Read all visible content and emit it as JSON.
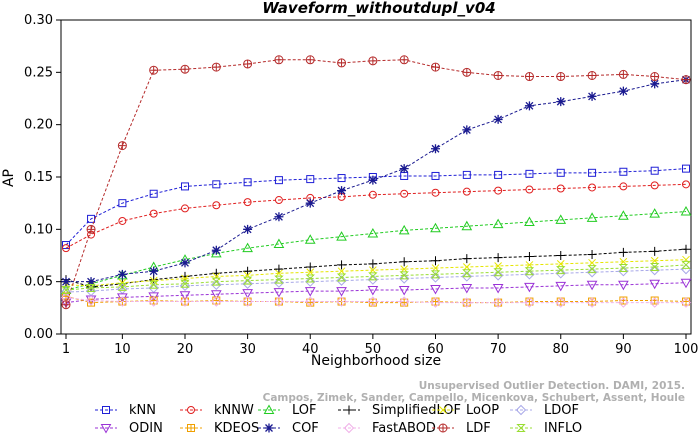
{
  "chart_data": {
    "type": "line",
    "title": "Waveform_withoutdupl_v04",
    "xlabel": "Neighborhood size",
    "ylabel": "AP",
    "xlim": [
      1,
      100
    ],
    "ylim": [
      0,
      0.3
    ],
    "x_ticks": [
      1,
      10,
      20,
      30,
      40,
      50,
      60,
      70,
      80,
      90,
      100
    ],
    "y_ticks": [
      "0.00",
      "0.05",
      "0.10",
      "0.15",
      "0.20",
      "0.25",
      "0.30"
    ],
    "grid": false,
    "legend_position": "bottom",
    "x_points": [
      1,
      5,
      10,
      15,
      20,
      25,
      30,
      35,
      40,
      45,
      50,
      55,
      60,
      65,
      70,
      75,
      80,
      85,
      90,
      95,
      100
    ],
    "watermark": [
      "Campos, Zimek, Sander, Campello, Micenkova, Schubert, Assent, Houle",
      "Unsupervised Outlier Detection. DAMI, 2015."
    ],
    "series": [
      {
        "name": "kNN",
        "color": "#1f1fd6",
        "marker": "square",
        "values": [
          0.085,
          0.11,
          0.125,
          0.134,
          0.141,
          0.143,
          0.145,
          0.147,
          0.148,
          0.149,
          0.15,
          0.151,
          0.151,
          0.152,
          0.152,
          0.153,
          0.154,
          0.154,
          0.155,
          0.156,
          0.158
        ]
      },
      {
        "name": "kNNW",
        "color": "#e01f1f",
        "marker": "circle",
        "values": [
          0.082,
          0.095,
          0.108,
          0.115,
          0.12,
          0.123,
          0.126,
          0.128,
          0.13,
          0.131,
          0.133,
          0.134,
          0.135,
          0.136,
          0.137,
          0.138,
          0.139,
          0.14,
          0.141,
          0.142,
          0.143
        ]
      },
      {
        "name": "LOF",
        "color": "#22cc22",
        "marker": "triangle",
        "values": [
          0.042,
          0.048,
          0.056,
          0.064,
          0.071,
          0.077,
          0.082,
          0.086,
          0.09,
          0.093,
          0.096,
          0.099,
          0.101,
          0.103,
          0.105,
          0.107,
          0.109,
          0.111,
          0.113,
          0.115,
          0.117
        ]
      },
      {
        "name": "SimplifiedLOF",
        "color": "#000000",
        "marker": "plus",
        "values": [
          0.052,
          0.045,
          0.048,
          0.052,
          0.055,
          0.058,
          0.06,
          0.062,
          0.064,
          0.066,
          0.067,
          0.069,
          0.07,
          0.072,
          0.073,
          0.074,
          0.075,
          0.076,
          0.078,
          0.079,
          0.081
        ]
      },
      {
        "name": "LoOP",
        "color": "#e6e600",
        "marker": "x",
        "values": [
          0.047,
          0.046,
          0.049,
          0.051,
          0.053,
          0.055,
          0.056,
          0.058,
          0.059,
          0.06,
          0.061,
          0.062,
          0.063,
          0.064,
          0.065,
          0.066,
          0.067,
          0.068,
          0.069,
          0.07,
          0.071
        ]
      },
      {
        "name": "LDOF",
        "color": "#a8a8e8",
        "marker": "diamond",
        "values": [
          0.04,
          0.041,
          0.043,
          0.044,
          0.046,
          0.047,
          0.048,
          0.049,
          0.05,
          0.051,
          0.052,
          0.053,
          0.054,
          0.055,
          0.056,
          0.057,
          0.058,
          0.059,
          0.06,
          0.061,
          0.062
        ]
      },
      {
        "name": "ODIN",
        "color": "#9a32d6",
        "marker": "triangle-down",
        "values": [
          0.03,
          0.033,
          0.035,
          0.036,
          0.037,
          0.038,
          0.039,
          0.04,
          0.041,
          0.041,
          0.042,
          0.042,
          0.043,
          0.044,
          0.044,
          0.045,
          0.046,
          0.047,
          0.047,
          0.048,
          0.049
        ]
      },
      {
        "name": "KDEOS",
        "color": "#f0a000",
        "marker": "boxplus",
        "values": [
          0.036,
          0.03,
          0.031,
          0.032,
          0.031,
          0.032,
          0.031,
          0.031,
          0.03,
          0.031,
          0.03,
          0.03,
          0.031,
          0.03,
          0.03,
          0.031,
          0.031,
          0.031,
          0.032,
          0.032,
          0.031
        ]
      },
      {
        "name": "COF",
        "color": "#1a1a90",
        "marker": "star",
        "values": [
          0.05,
          0.05,
          0.057,
          0.06,
          0.068,
          0.08,
          0.1,
          0.112,
          0.125,
          0.137,
          0.147,
          0.158,
          0.177,
          0.195,
          0.205,
          0.218,
          0.222,
          0.227,
          0.232,
          0.239,
          0.243
        ]
      },
      {
        "name": "FastABOD",
        "color": "#f0b0e8",
        "marker": "diamond",
        "values": [
          0.035,
          0.032,
          0.031,
          0.031,
          0.031,
          0.031,
          0.031,
          0.031,
          0.031,
          0.031,
          0.031,
          0.031,
          0.03,
          0.03,
          0.03,
          0.03,
          0.03,
          0.03,
          0.03,
          0.03,
          0.03
        ]
      },
      {
        "name": "LDF",
        "color": "#b52a2a",
        "marker": "circleplus",
        "values": [
          0.028,
          0.1,
          0.18,
          0.252,
          0.253,
          0.255,
          0.258,
          0.262,
          0.262,
          0.259,
          0.261,
          0.262,
          0.255,
          0.25,
          0.247,
          0.246,
          0.246,
          0.247,
          0.248,
          0.246,
          0.243
        ]
      },
      {
        "name": "INFLO",
        "color": "#99dd33",
        "marker": "hourglass",
        "values": [
          0.042,
          0.044,
          0.045,
          0.047,
          0.048,
          0.05,
          0.051,
          0.052,
          0.053,
          0.054,
          0.055,
          0.056,
          0.057,
          0.058,
          0.059,
          0.06,
          0.061,
          0.062,
          0.063,
          0.064,
          0.066
        ]
      }
    ]
  }
}
